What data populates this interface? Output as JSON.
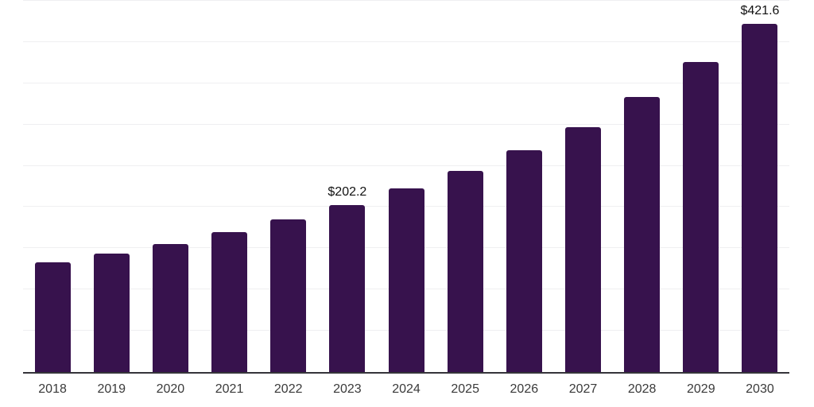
{
  "chart_data": {
    "type": "bar",
    "categories": [
      "2018",
      "2019",
      "2020",
      "2021",
      "2022",
      "2023",
      "2024",
      "2025",
      "2026",
      "2027",
      "2028",
      "2029",
      "2030"
    ],
    "values": [
      133.0,
      143.7,
      155.2,
      169.9,
      184.6,
      202.2,
      222.3,
      244.0,
      269.2,
      297.2,
      333.6,
      375.5,
      421.6
    ],
    "point_labels": {
      "2023": "$202.2",
      "2030": "$421.6"
    },
    "value_prefix": "$",
    "ylim": [
      0,
      450
    ],
    "gridline_step": 50,
    "grid": "horizontal-light",
    "legend": "none",
    "bar_color": "#37124D",
    "axis_line_color": "#35343a",
    "gridline_color": "#efeff1",
    "tick_label_color": "#3a3a3a",
    "data_label_color": "#121212",
    "background_color": "#ffffff"
  }
}
